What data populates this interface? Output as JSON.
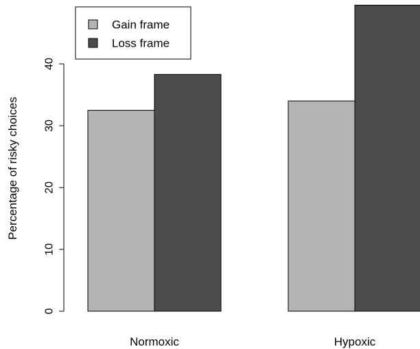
{
  "chart_data": {
    "type": "bar",
    "categories": [
      "Normoxic",
      "Hypoxic"
    ],
    "series": [
      {
        "name": "Gain frame",
        "values": [
          32.5,
          34.0
        ],
        "color": "#b3b3b3"
      },
      {
        "name": "Loss frame",
        "values": [
          38.3,
          49.5
        ],
        "color": "#4d4d4d"
      }
    ],
    "title": "",
    "xlabel": "",
    "ylabel": "Percentage of risky choices",
    "ylim": [
      0,
      50
    ],
    "yticks": [
      0,
      10,
      20,
      30,
      40
    ],
    "grid": false,
    "legend_position": "top-left"
  }
}
